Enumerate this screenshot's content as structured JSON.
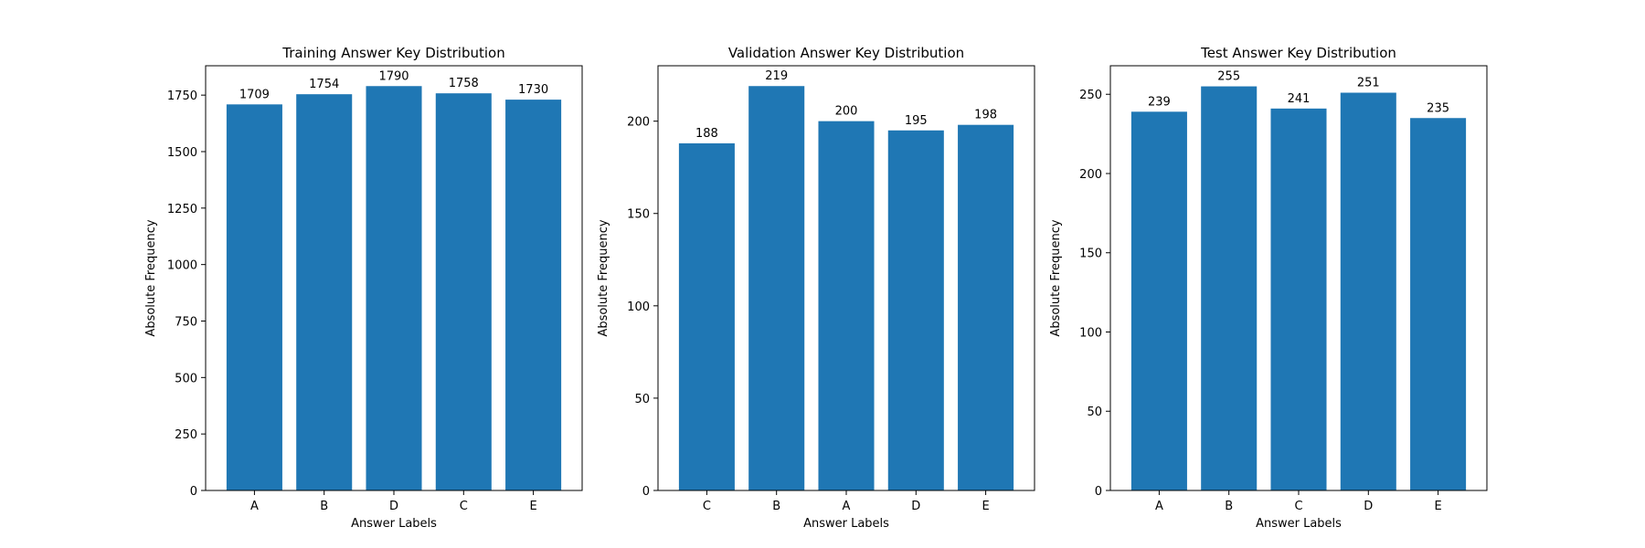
{
  "chart_data": [
    {
      "type": "bar",
      "title": "Training Answer Key Distribution",
      "xlabel": "Answer Labels",
      "ylabel": "Absolute Frequency",
      "categories": [
        "A",
        "B",
        "D",
        "C",
        "E"
      ],
      "values": [
        1709,
        1754,
        1790,
        1758,
        1730
      ],
      "ylim": [
        0,
        1880
      ],
      "yticks": [
        0,
        250,
        500,
        750,
        1000,
        1250,
        1500,
        1750
      ],
      "data_labels": true,
      "grid": false,
      "color": "#1f77b4"
    },
    {
      "type": "bar",
      "title": "Validation Answer Key Distribution",
      "xlabel": "Answer Labels",
      "ylabel": "Absolute Frequency",
      "categories": [
        "C",
        "B",
        "A",
        "D",
        "E"
      ],
      "values": [
        188,
        219,
        200,
        195,
        198
      ],
      "ylim": [
        0,
        230
      ],
      "yticks": [
        0,
        50,
        100,
        150,
        200
      ],
      "data_labels": true,
      "grid": false,
      "color": "#1f77b4"
    },
    {
      "type": "bar",
      "title": "Test Answer Key Distribution",
      "xlabel": "Answer Labels",
      "ylabel": "Absolute Frequency",
      "categories": [
        "A",
        "B",
        "C",
        "D",
        "E"
      ],
      "values": [
        239,
        255,
        241,
        251,
        235
      ],
      "ylim": [
        0,
        268
      ],
      "yticks": [
        0,
        50,
        100,
        150,
        200,
        250
      ],
      "data_labels": true,
      "grid": false,
      "color": "#1f77b4"
    }
  ]
}
